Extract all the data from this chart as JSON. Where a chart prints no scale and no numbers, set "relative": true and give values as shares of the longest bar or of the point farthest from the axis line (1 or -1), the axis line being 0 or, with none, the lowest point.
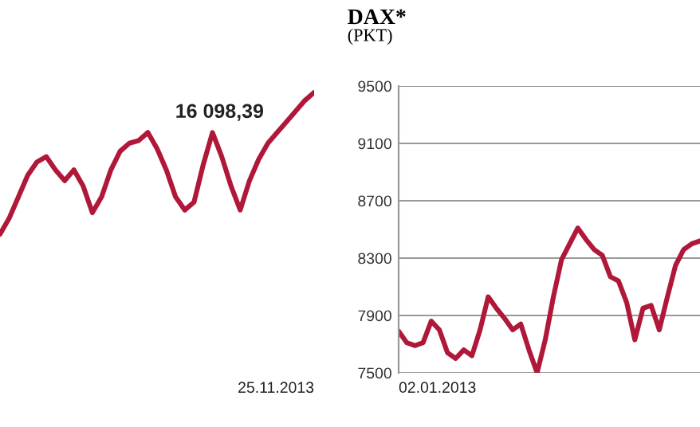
{
  "chart_data": [
    {
      "type": "line",
      "relative": true,
      "categories": [
        null,
        null,
        null,
        null,
        null,
        null,
        null,
        null,
        null,
        null,
        null,
        null,
        null,
        null,
        null,
        null,
        null,
        null,
        null,
        null,
        null,
        null,
        null,
        null,
        null,
        null,
        null,
        null,
        null,
        null,
        null,
        null,
        null,
        null,
        null
      ],
      "annotations": [
        "16 098,39",
        "25.11.2013"
      ],
      "series": [
        {
          "color": "#b0183a",
          "values": [
            0,
            0.113,
            0.264,
            0.415,
            0.509,
            0.547,
            0.453,
            0.377,
            0.453,
            0.34,
            0.151,
            0.264,
            0.453,
            0.585,
            0.642,
            0.66,
            0.717,
            0.604,
            0.453,
            0.264,
            0.17,
            0.226,
            0.491,
            0.717,
            0.547,
            0.34,
            0.17,
            0.377,
            0.528,
            0.642,
            0.717,
            0.792,
            0.868,
            0.943,
            1
          ]
        }
      ]
    },
    {
      "type": "line",
      "title": "DAX*",
      "subtitle": "(PKT)",
      "grid": "y",
      "categories": [
        null,
        null,
        null,
        null,
        null,
        null,
        null,
        null,
        null,
        null,
        null,
        null,
        null,
        null,
        null,
        null,
        null,
        null,
        null,
        null,
        null,
        null,
        null,
        null,
        null,
        null,
        null,
        null,
        null,
        null,
        null,
        null,
        null,
        null,
        null,
        null,
        null,
        null
      ],
      "annotations": [
        "02.01.2013"
      ],
      "ylim": [
        7500,
        9500
      ],
      "yticks": [
        7500,
        7900,
        8300,
        8700,
        9100,
        9500
      ],
      "series": [
        {
          "color": "#b0183a",
          "values": [
            7790,
            7710,
            7690,
            7710,
            7860,
            7800,
            7640,
            7600,
            7660,
            7620,
            7800,
            8030,
            7950,
            7880,
            7800,
            7840,
            7660,
            7500,
            7730,
            8030,
            8290,
            8400,
            8510,
            8430,
            8360,
            8320,
            8170,
            8140,
            7990,
            7730,
            7950,
            7970,
            7800,
            8030,
            8250,
            8360,
            8400,
            8420
          ]
        }
      ]
    }
  ]
}
